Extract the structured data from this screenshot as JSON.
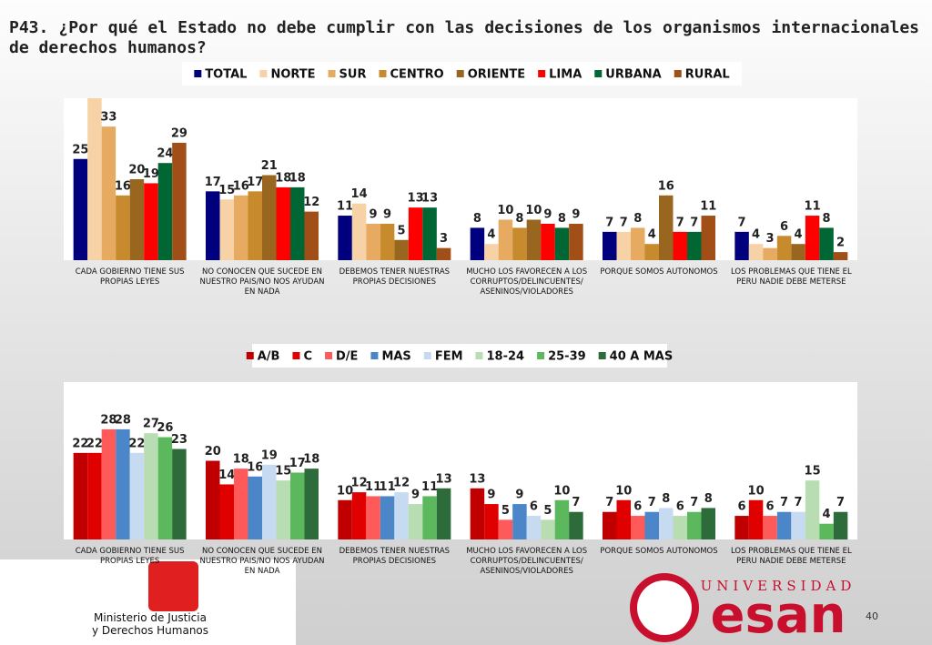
{
  "title": "P43. ¿Por qué el Estado no debe cumplir con las decisiones de los organismos internacionales de derechos humanos?",
  "chart_data": [
    {
      "type": "bar",
      "categories": [
        "CADA GOBIERNO TIENE SUS PROPIAS LEYES",
        "NO CONOCEN QUE SUCEDE EN NUESTRO PAIS/NO NOS AYUDAN\nEN NADA",
        "DEBEMOS TENER NUESTRAS PROPIAS DECISIONES",
        "MUCHO LOS FAVORECEN A LOS CORRUPTOS/DELINCUENTES/ ASENINOS/VIOLADORES",
        "PORQUE SOMOS AUTONOMOS",
        "LOS PROBLEMAS QUE TIENE EL PERU NADIE DEBE METERSE"
      ],
      "ylim": [
        0,
        40
      ],
      "series": [
        {
          "name": "TOTAL",
          "color": "#00007f",
          "values": [
            25,
            17,
            11,
            8,
            7,
            7
          ]
        },
        {
          "name": "NORTE",
          "color": "#f6d2a6",
          "values": [
            41,
            15,
            14,
            4,
            7,
            4
          ],
          "value_labels": [
            null,
            "15",
            "14",
            "4",
            "7",
            "4"
          ]
        },
        {
          "name": "SUR",
          "color": "#e6aa60",
          "values": [
            33,
            16,
            9,
            10,
            8,
            3
          ]
        },
        {
          "name": "CENTRO",
          "color": "#c78a2d",
          "values": [
            16,
            17,
            9,
            8,
            4,
            6
          ]
        },
        {
          "name": "ORIENTE",
          "color": "#996620",
          "values": [
            20,
            21,
            5,
            10,
            16,
            4
          ]
        },
        {
          "name": "LIMA",
          "color": "#ff0000",
          "values": [
            19,
            18,
            13,
            9,
            7,
            11
          ]
        },
        {
          "name": "URBANA",
          "color": "#006633",
          "values": [
            24,
            18,
            13,
            8,
            7,
            8
          ]
        },
        {
          "name": "RURAL",
          "color": "#a24f17",
          "values": [
            29,
            12,
            3,
            9,
            11,
            2
          ]
        }
      ]
    },
    {
      "type": "bar",
      "categories": [
        "CADA GOBIERNO TIENE SUS PROPIAS LEYES",
        "NO CONOCEN QUE SUCEDE EN NUESTRO PAIS/NO NOS AYUDAN\nEN NADA",
        "DEBEMOS TENER NUESTRAS PROPIAS DECISIONES",
        "MUCHO LOS FAVORECEN A LOS CORRUPTOS/DELINCUENTES/ ASENINOS/VIOLADORES",
        "PORQUE SOMOS AUTONOMOS",
        "LOS PROBLEMAS QUE TIENE EL PERU NADIE DEBE METERSE"
      ],
      "ylim": [
        0,
        40
      ],
      "series": [
        {
          "name": "A/B",
          "color": "#c00000",
          "values": [
            22,
            20,
            10,
            13,
            7,
            6
          ]
        },
        {
          "name": "C",
          "color": "#e00000",
          "values": [
            22,
            14,
            12,
            9,
            10,
            10
          ]
        },
        {
          "name": "D/E",
          "color": "#ff5a5a",
          "values": [
            28,
            18,
            11,
            5,
            6,
            6
          ]
        },
        {
          "name": "MAS",
          "color": "#4a86c8",
          "values": [
            28,
            16,
            11,
            9,
            7,
            7
          ]
        },
        {
          "name": "FEM",
          "color": "#c6daf2",
          "values": [
            22,
            19,
            12,
            6,
            8,
            7
          ]
        },
        {
          "name": "18-24",
          "color": "#b9ddb2",
          "values": [
            27,
            15,
            9,
            5,
            6,
            15
          ]
        },
        {
          "name": "25-39",
          "color": "#5cb85c",
          "values": [
            26,
            17,
            11,
            10,
            7,
            4
          ]
        },
        {
          "name": "40 A MAS",
          "color": "#2e6b3a",
          "values": [
            23,
            18,
            13,
            7,
            8,
            7
          ]
        }
      ]
    }
  ],
  "footer": {
    "ministry": "Ministerio de Justicia\ny Derechos Humanos",
    "university": "UNIVERSIDAD",
    "brand": "esan",
    "page": "40"
  }
}
